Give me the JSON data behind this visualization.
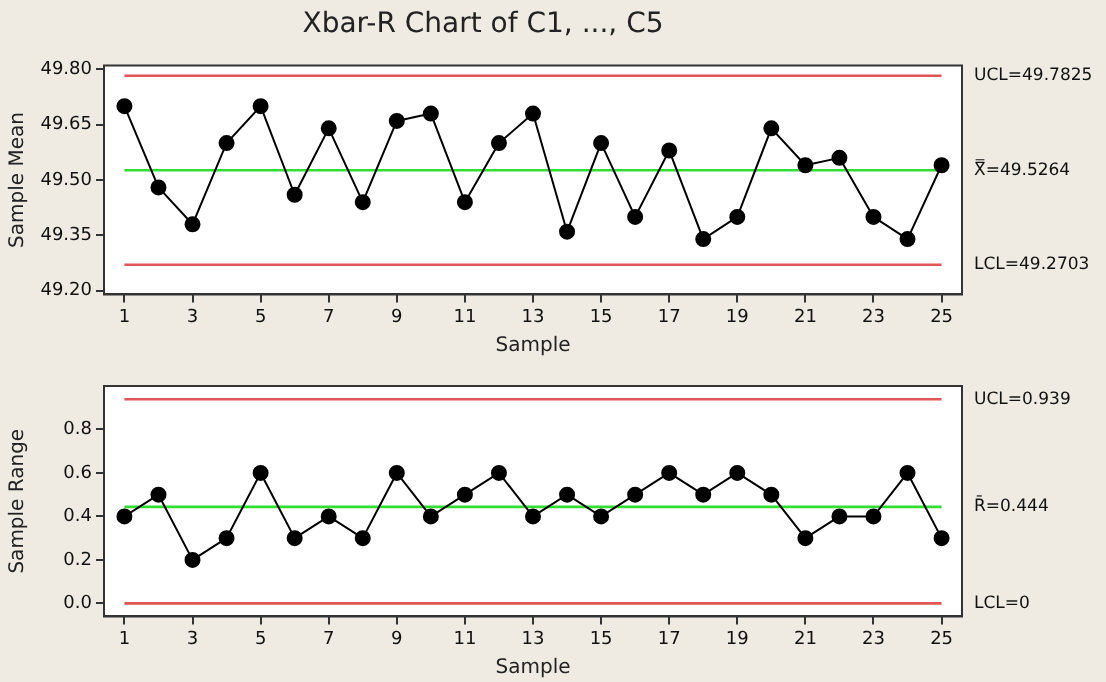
{
  "chart_data": [
    {
      "type": "line",
      "title": "Xbar-R Chart of C1, ..., C5",
      "xlabel": "Sample",
      "ylabel": "Sample Mean",
      "marker": "circle",
      "x": [
        1,
        2,
        3,
        4,
        5,
        6,
        7,
        8,
        9,
        10,
        11,
        12,
        13,
        14,
        15,
        16,
        17,
        18,
        19,
        20,
        21,
        22,
        23,
        24,
        25
      ],
      "series": [
        {
          "color": "#000000",
          "values": [
            49.7,
            49.48,
            49.38,
            49.6,
            49.7,
            49.46,
            49.64,
            49.44,
            49.66,
            49.68,
            49.44,
            49.6,
            49.68,
            49.36,
            49.6,
            49.4,
            49.58,
            49.34,
            49.4,
            49.64,
            49.54,
            49.56,
            49.4,
            49.34,
            49.54
          ]
        }
      ],
      "xlim": [
        0.4,
        25.6
      ],
      "xticks": [
        1,
        3,
        5,
        7,
        9,
        11,
        13,
        15,
        17,
        19,
        21,
        23,
        25
      ],
      "ylim": [
        49.19,
        49.81
      ],
      "yticks": [
        {
          "value": 49.2,
          "label": "49.20"
        },
        {
          "value": 49.35,
          "label": "49.35"
        },
        {
          "value": 49.5,
          "label": "49.50"
        },
        {
          "value": 49.65,
          "label": "49.65"
        },
        {
          "value": 49.8,
          "label": "49.80"
        }
      ],
      "ref_lines": [
        {
          "axis": "y",
          "value": 49.7825,
          "label": "UCL=49.7825",
          "color": "#e05555"
        },
        {
          "axis": "y",
          "value": 49.5264,
          "label": "X̿=49.5264",
          "color": "#33dd33"
        },
        {
          "axis": "y",
          "value": 49.2703,
          "label": "LCL=49.2703",
          "color": "#e05555"
        }
      ]
    },
    {
      "type": "line",
      "xlabel": "Sample",
      "ylabel": "Sample Range",
      "marker": "circle",
      "x": [
        1,
        2,
        3,
        4,
        5,
        6,
        7,
        8,
        9,
        10,
        11,
        12,
        13,
        14,
        15,
        16,
        17,
        18,
        19,
        20,
        21,
        22,
        23,
        24,
        25
      ],
      "series": [
        {
          "color": "#000000",
          "values": [
            0.4,
            0.5,
            0.2,
            0.3,
            0.6,
            0.3,
            0.4,
            0.3,
            0.6,
            0.4,
            0.5,
            0.6,
            0.4,
            0.5,
            0.4,
            0.5,
            0.6,
            0.5,
            0.6,
            0.5,
            0.3,
            0.4,
            0.4,
            0.6,
            0.3
          ]
        }
      ],
      "xlim": [
        0.4,
        25.6
      ],
      "xticks": [
        1,
        3,
        5,
        7,
        9,
        11,
        13,
        15,
        17,
        19,
        21,
        23,
        25
      ],
      "ylim": [
        -0.06,
        1.0
      ],
      "yticks": [
        {
          "value": 0,
          "label": "0.0"
        },
        {
          "value": 0.2,
          "label": "0.2"
        },
        {
          "value": 0.4,
          "label": "0.4"
        },
        {
          "value": 0.6,
          "label": "0.6"
        },
        {
          "value": 0.8,
          "label": "0.8"
        }
      ],
      "ref_lines": [
        {
          "axis": "y",
          "value": 0.939,
          "label": "UCL=0.939",
          "color": "#e05555"
        },
        {
          "axis": "y",
          "value": 0.444,
          "label": "R̄=0.444",
          "color": "#33dd33"
        },
        {
          "axis": "y",
          "value": 0,
          "label": "LCL=0",
          "color": "#e05555"
        }
      ]
    }
  ]
}
